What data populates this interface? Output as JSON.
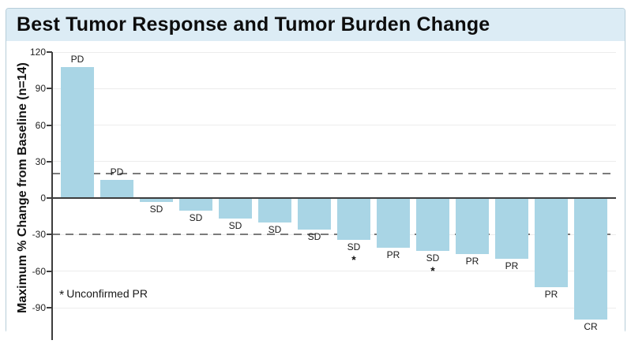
{
  "header": {
    "title": "Best Tumor Response and Tumor Burden Change"
  },
  "chart_data": {
    "type": "bar",
    "subtype": "waterfall",
    "title": "Best Tumor Response and Tumor Burden Change",
    "xlabel": "",
    "ylabel": "Maximum % Change from Baseline (n=14)",
    "n": 14,
    "ylim": [
      120,
      -110
    ],
    "yticks": [
      120,
      90,
      60,
      30,
      0,
      -30,
      -60,
      -90
    ],
    "grid": true,
    "legend": "none",
    "bars": [
      {
        "response": "PD",
        "value": 108,
        "unconfirmed": false
      },
      {
        "response": "PD",
        "value": 15,
        "unconfirmed": false
      },
      {
        "response": "SD",
        "value": -3,
        "unconfirmed": false
      },
      {
        "response": "SD",
        "value": -10,
        "unconfirmed": false
      },
      {
        "response": "SD",
        "value": -17,
        "unconfirmed": false
      },
      {
        "response": "SD",
        "value": -20,
        "unconfirmed": false
      },
      {
        "response": "SD",
        "value": -26,
        "unconfirmed": false
      },
      {
        "response": "SD",
        "value": -34,
        "unconfirmed": true
      },
      {
        "response": "PR",
        "value": -41,
        "unconfirmed": false
      },
      {
        "response": "SD",
        "value": -43,
        "unconfirmed": true
      },
      {
        "response": "PR",
        "value": -46,
        "unconfirmed": false
      },
      {
        "response": "PR",
        "value": -50,
        "unconfirmed": false
      },
      {
        "response": "PR",
        "value": -73,
        "unconfirmed": false
      },
      {
        "response": "CR",
        "value": -100,
        "unconfirmed": false
      }
    ],
    "reference_lines": [
      {
        "value": 20,
        "style": "dashed"
      },
      {
        "value": -30,
        "style": "dashed"
      }
    ],
    "annotation": {
      "marker": "*",
      "text": "Unconfirmed PR"
    },
    "colors": {
      "bar_fill": "#a9d5e5",
      "header_bg": "#dcecf5",
      "panel_border": "#b6cdd9",
      "gridline": "#ececec",
      "dashed_line": "#7b7b7b",
      "zero_line": "#3d3d3d",
      "text": "#1a1a1a"
    }
  }
}
